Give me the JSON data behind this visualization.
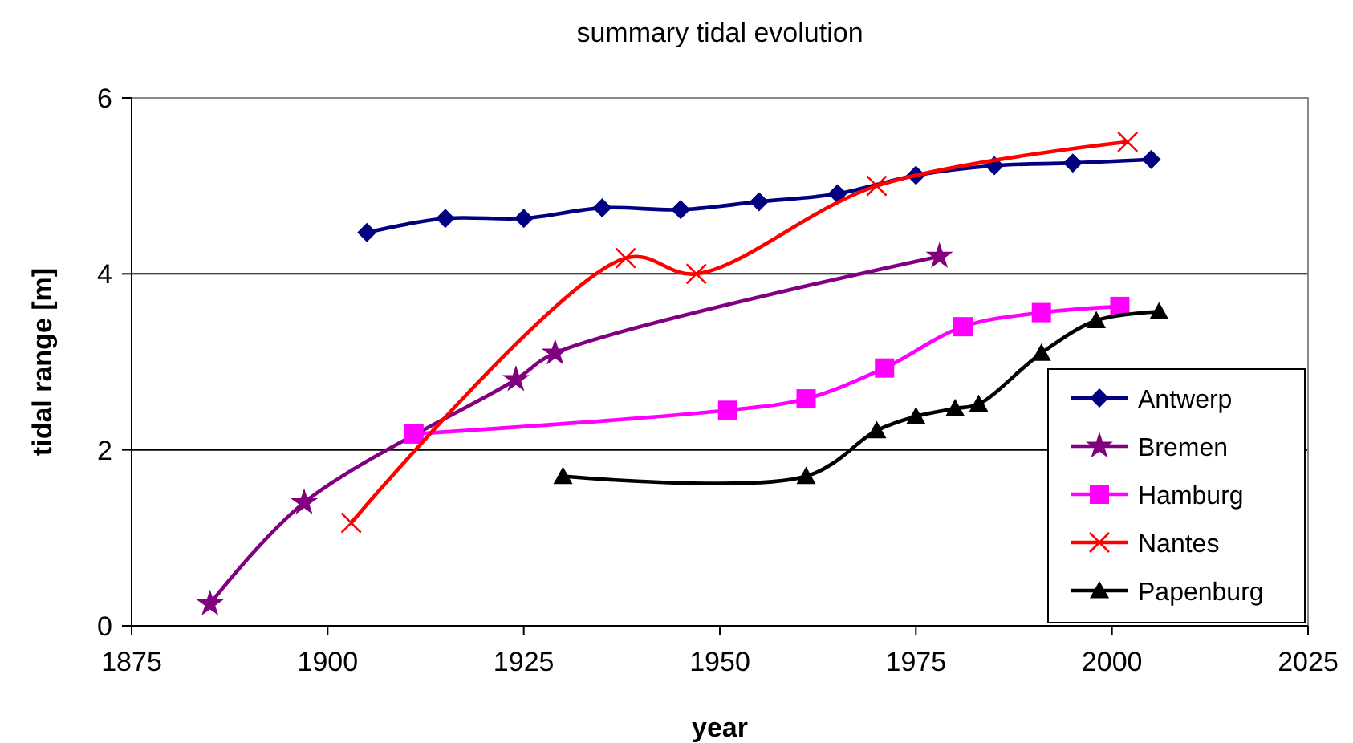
{
  "chart_data": {
    "type": "line",
    "title": "summary tidal evolution",
    "xlabel": "year",
    "ylabel": "tidal range [m]",
    "xlim": [
      1875,
      2025
    ],
    "xticks": [
      1875,
      1900,
      1925,
      1950,
      1975,
      2000,
      2025
    ],
    "ylim": [
      0,
      6
    ],
    "yticks": [
      0,
      2,
      4,
      6
    ],
    "grid": "y",
    "legend": "bottom right",
    "line_style": "solid",
    "series": [
      {
        "name": "Antwerp",
        "color": "#000080",
        "marker": "diamond",
        "x": [
          1905,
          1915,
          1925,
          1935,
          1945,
          1955,
          1965,
          1975,
          1985,
          1995,
          2005
        ],
        "values": [
          4.47,
          4.63,
          4.63,
          4.75,
          4.73,
          4.82,
          4.91,
          5.12,
          5.23,
          5.26,
          5.3
        ]
      },
      {
        "name": "Bremen",
        "color": "#800080",
        "marker": "star",
        "x": [
          1885,
          1897,
          1924,
          1929,
          1978
        ],
        "values": [
          0.25,
          1.4,
          2.8,
          3.1,
          4.2
        ]
      },
      {
        "name": "Hamburg",
        "color": "#ff00ff",
        "marker": "square",
        "x": [
          1911,
          1951,
          1961,
          1971,
          1981,
          1991,
          2001
        ],
        "values": [
          2.18,
          2.45,
          2.58,
          2.93,
          3.4,
          3.56,
          3.63
        ]
      },
      {
        "name": "Nantes",
        "color": "#ff0000",
        "marker": "cross",
        "x": [
          1903,
          1938,
          1947,
          1970,
          2002
        ],
        "values": [
          1.17,
          4.18,
          4.0,
          5.0,
          5.5
        ]
      },
      {
        "name": "Papenburg",
        "color": "#000000",
        "marker": "triangle",
        "x": [
          1930,
          1961,
          1970,
          1975,
          1980,
          1983,
          1991,
          1998,
          2006
        ],
        "values": [
          1.7,
          1.7,
          2.22,
          2.38,
          2.47,
          2.52,
          3.1,
          3.47,
          3.57
        ]
      }
    ]
  }
}
